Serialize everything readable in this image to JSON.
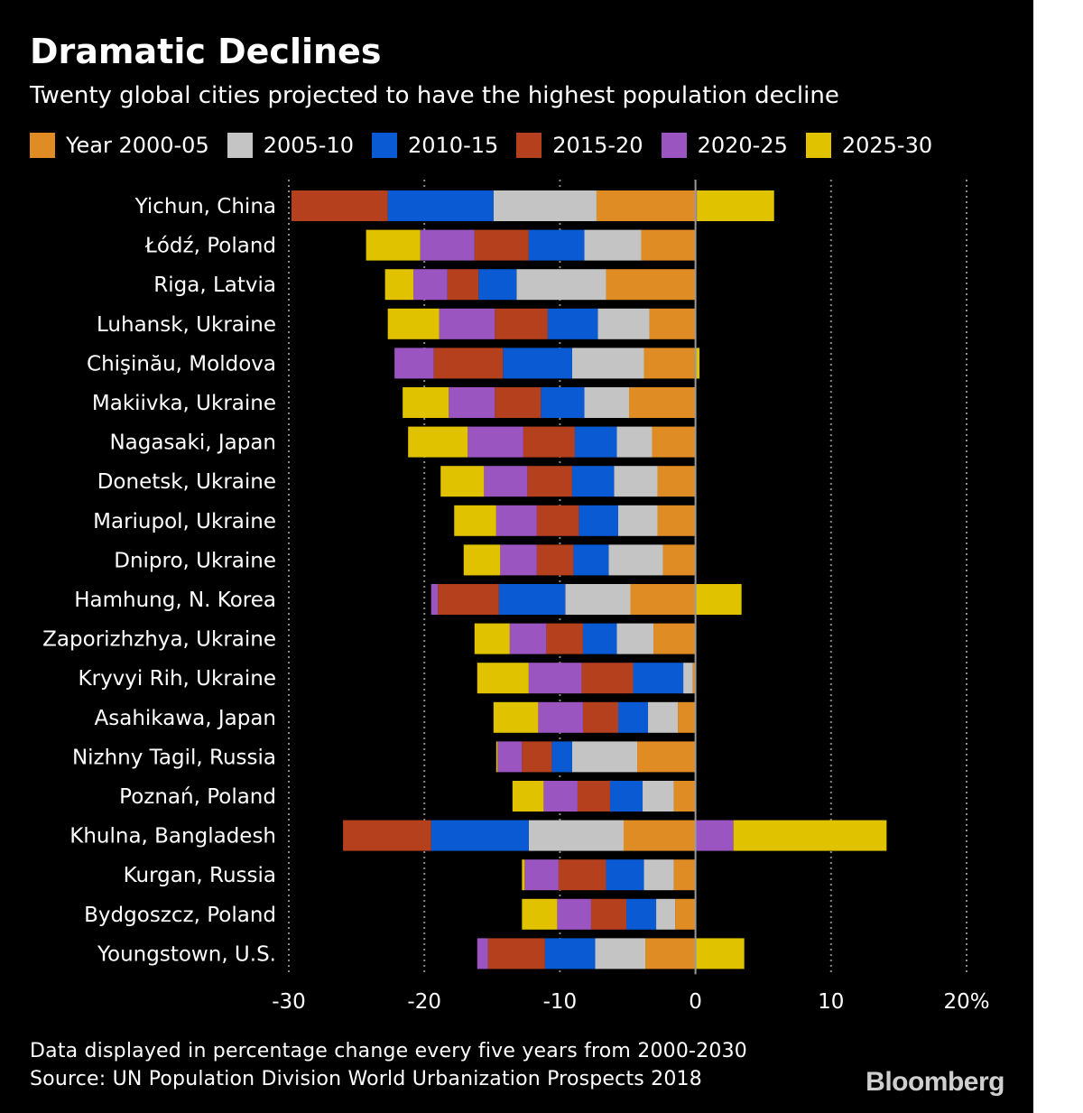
{
  "header": {
    "title": "Dramatic Declines",
    "subtitle": "Twenty global cities projected to have the highest population decline"
  },
  "footer": {
    "note": "Data displayed in percentage change every five years from 2000-2030",
    "source": "Source: UN Population Division World Urbanization Prospects 2018",
    "brand": "Bloomberg"
  },
  "chart_data": {
    "type": "bar",
    "orientation": "horizontal",
    "stacked": true,
    "categories": [
      "Yichun, China",
      "Łódź, Poland",
      "Riga, Latvia",
      "Luhansk, Ukraine",
      "Chişinău, Moldova",
      "Makiivka, Ukraine",
      "Nagasaki, Japan",
      "Donetsk, Ukraine",
      "Mariupol, Ukraine",
      "Dnipro, Ukraine",
      "Hamhung, N. Korea",
      "Zaporizhzhya, Ukraine",
      "Kryvyi Rih, Ukraine",
      "Asahikawa, Japan",
      "Nizhny Tagil, Russia",
      "Poznań, Poland",
      "Khulna, Bangladesh",
      "Kurgan, Russia",
      "Bydgoszcz, Poland",
      "Youngstown, U.S."
    ],
    "series": [
      {
        "name": "Year 2000-05",
        "color": "#e08c25",
        "values": [
          -7.3,
          -4.0,
          -6.6,
          -3.4,
          -3.8,
          -4.9,
          -3.2,
          -2.8,
          -2.8,
          -2.4,
          -4.8,
          -3.1,
          -0.2,
          -1.3,
          -4.3,
          -1.6,
          -5.3,
          -1.6,
          -1.5,
          -3.7
        ]
      },
      {
        "name": "2005-10",
        "color": "#c4c4c4",
        "values": [
          -7.6,
          -4.2,
          -6.6,
          -3.8,
          -5.3,
          -3.3,
          -2.6,
          -3.2,
          -2.9,
          -4.0,
          -4.8,
          -2.7,
          -0.7,
          -2.2,
          -4.8,
          -2.3,
          -7.0,
          -2.2,
          -1.4,
          -3.7
        ]
      },
      {
        "name": "2010-15",
        "color": "#0a5ad4",
        "values": [
          -7.8,
          -4.1,
          -2.8,
          -3.7,
          -5.1,
          -3.2,
          -3.1,
          -3.1,
          -2.9,
          -2.6,
          -4.9,
          -2.5,
          -3.7,
          -2.2,
          -1.5,
          -2.4,
          -7.2,
          -2.8,
          -2.2,
          -3.7
        ]
      },
      {
        "name": "2015-20",
        "color": "#b5401e",
        "values": [
          -7.1,
          -4.0,
          -2.3,
          -3.9,
          -5.1,
          -3.4,
          -3.8,
          -3.3,
          -3.1,
          -2.7,
          -4.5,
          -2.7,
          -3.8,
          -2.6,
          -2.2,
          -2.4,
          -6.5,
          -3.5,
          -2.6,
          -4.2
        ]
      },
      {
        "name": "2020-25",
        "color": "#9b55c0",
        "values": [
          0.1,
          -4.0,
          -2.5,
          -4.1,
          -2.9,
          -3.4,
          -4.1,
          -3.2,
          -3.0,
          -2.7,
          -0.5,
          -2.7,
          -3.9,
          -3.3,
          -1.8,
          -2.5,
          2.8,
          -2.5,
          -2.5,
          -0.8
        ]
      },
      {
        "name": "2025-30",
        "color": "#e0c200",
        "values": [
          5.7,
          -4.0,
          -2.1,
          -3.8,
          0.3,
          -3.4,
          -4.4,
          -3.2,
          -3.1,
          -2.7,
          3.4,
          -2.6,
          -3.8,
          -3.3,
          -0.1,
          -2.3,
          11.3,
          -0.2,
          -2.6,
          3.6
        ]
      }
    ],
    "xlim": [
      -30,
      20
    ],
    "xticks": [
      "-30",
      "-20",
      "-10",
      "0",
      "10",
      "20%"
    ],
    "gridlines": "vertical, dotted",
    "legend_position": "top"
  }
}
